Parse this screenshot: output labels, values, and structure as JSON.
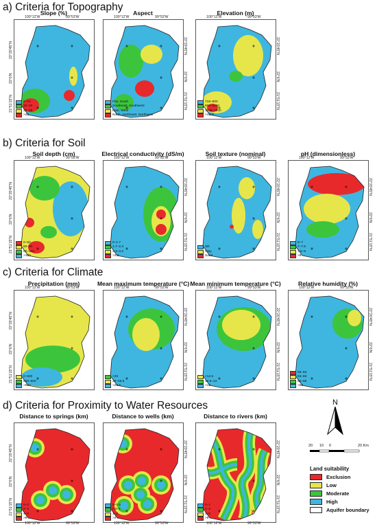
{
  "sections": [
    {
      "id": "topo",
      "title": "a) Criteria for Topography"
    },
    {
      "id": "soil",
      "title": "b) Criteria for Soil"
    },
    {
      "id": "climate",
      "title": "c) Criteria for Climate"
    },
    {
      "id": "water",
      "title": "d) Criteria for Proximity to Water Resources"
    }
  ],
  "coords": {
    "lon_left": "100°12'W",
    "lon_right": "99°53'W",
    "lat_top": "22°20'45\"N",
    "lat_mid": "22°6'N",
    "lat_bot": "21°51'15\"N"
  },
  "colors": {
    "exclusion": "#e8292b",
    "low": "#e6e64a",
    "moderate": "#3cc53c",
    "high": "#3fb6e0"
  },
  "panels": [
    {
      "title": "Slope (%)",
      "legend": [
        {
          "label": "0–10",
          "color": "#3fb6e0"
        },
        {
          "label": "10–20",
          "color": "#3cc53c"
        },
        {
          "label": "20–25",
          "color": "#e6e64a"
        },
        {
          "label": ">25",
          "color": "#e8292b"
        }
      ],
      "base": "#3fb6e0",
      "blobs": [
        {
          "c": "#3cc53c",
          "cx": 30,
          "cy": 118,
          "rx": 22,
          "ry": 18
        },
        {
          "c": "#e8292b",
          "cx": 24,
          "cy": 124,
          "rx": 12,
          "ry": 10
        },
        {
          "c": "#e6e64a",
          "cx": 86,
          "cy": 82,
          "rx": 6,
          "ry": 14
        },
        {
          "c": "#e8292b",
          "cx": 80,
          "cy": 110,
          "rx": 8,
          "ry": 8
        }
      ]
    },
    {
      "title": "Aspect",
      "legend": [
        {
          "label": "Flat, South",
          "color": "#3fb6e0"
        },
        {
          "label": "Southeast, Southwest",
          "color": "#3cc53c"
        },
        {
          "label": "East, West",
          "color": "#e6e64a"
        },
        {
          "label": "North, Northeast, Northwest",
          "color": "#e8292b"
        }
      ],
      "base": "#3fb6e0",
      "blobs": [
        {
          "c": "#3cc53c",
          "cx": 40,
          "cy": 60,
          "rx": 18,
          "ry": 24
        },
        {
          "c": "#e6e64a",
          "cx": 70,
          "cy": 50,
          "rx": 16,
          "ry": 14
        },
        {
          "c": "#e8292b",
          "cx": 60,
          "cy": 100,
          "rx": 14,
          "ry": 12
        },
        {
          "c": "#3cc53c",
          "cx": 30,
          "cy": 120,
          "rx": 14,
          "ry": 12
        }
      ]
    },
    {
      "title": "Elevation (m)",
      "legend": [
        {
          "label": "716–900",
          "color": "#3fb6e0"
        },
        {
          "label": "900–1100",
          "color": "#3cc53c"
        },
        {
          "label": "1100–1500",
          "color": "#e6e64a"
        },
        {
          "label": ">1500",
          "color": "#e8292b"
        }
      ],
      "base": "#3fb6e0",
      "blobs": [
        {
          "c": "#e6e64a",
          "cx": 76,
          "cy": 52,
          "rx": 22,
          "ry": 30
        },
        {
          "c": "#e6e64a",
          "cx": 30,
          "cy": 120,
          "rx": 22,
          "ry": 16
        },
        {
          "c": "#3cc53c",
          "cx": 58,
          "cy": 82,
          "rx": 10,
          "ry": 8
        },
        {
          "c": "#e8292b",
          "cx": 24,
          "cy": 128,
          "rx": 8,
          "ry": 6
        }
      ]
    },
    {
      "title": "Soil depth (cm)",
      "legend": [
        {
          "label": "0–50",
          "color": "#e8292b"
        },
        {
          "label": "50–80",
          "color": "#e6e64a"
        },
        {
          "label": "80–100",
          "color": "#3cc53c"
        },
        {
          "label": ">100",
          "color": "#3fb6e0"
        }
      ],
      "base": "#e6e64a",
      "blobs": [
        {
          "c": "#3fb6e0",
          "cx": 82,
          "cy": 70,
          "rx": 26,
          "ry": 40
        },
        {
          "c": "#3cc53c",
          "cx": 44,
          "cy": 40,
          "rx": 22,
          "ry": 18
        },
        {
          "c": "#e8292b",
          "cx": 22,
          "cy": 90,
          "rx": 7,
          "ry": 7
        },
        {
          "c": "#e8292b",
          "cx": 32,
          "cy": 126,
          "rx": 12,
          "ry": 9
        },
        {
          "c": "#3cc53c",
          "cx": 50,
          "cy": 104,
          "rx": 12,
          "ry": 9
        }
      ]
    },
    {
      "title": "Electrical conductivity (dS/m)",
      "legend": [
        {
          "label": "0–1.7",
          "color": "#3fb6e0"
        },
        {
          "label": "1.7–2.3",
          "color": "#3cc53c"
        },
        {
          "label": "2.3–3.3",
          "color": "#e6e64a"
        },
        {
          "label": ">3.3",
          "color": "#e8292b"
        }
      ],
      "base": "#3fb6e0",
      "blobs": [
        {
          "c": "#3cc53c",
          "cx": 84,
          "cy": 78,
          "rx": 26,
          "ry": 40
        },
        {
          "c": "#e6e64a",
          "cx": 84,
          "cy": 88,
          "rx": 14,
          "ry": 22
        },
        {
          "c": "#e8292b",
          "cx": 84,
          "cy": 78,
          "rx": 7,
          "ry": 7
        },
        {
          "c": "#e8292b",
          "cx": 84,
          "cy": 100,
          "rx": 8,
          "ry": 8
        }
      ]
    },
    {
      "title": "Soil texture (nominal)",
      "legend": [
        {
          "label": "Silt",
          "color": "#3fb6e0"
        },
        {
          "label": "Clay",
          "color": "#e6e64a"
        },
        {
          "label": "Sand",
          "color": "#e8292b"
        }
      ],
      "base": "#3fb6e0",
      "blobs": [
        {
          "c": "#e6e64a",
          "cx": 74,
          "cy": 40,
          "rx": 12,
          "ry": 16
        },
        {
          "c": "#e6e64a",
          "cx": 62,
          "cy": 80,
          "rx": 10,
          "ry": 26
        },
        {
          "c": "#e6e64a",
          "cx": 90,
          "cy": 100,
          "rx": 8,
          "ry": 14
        },
        {
          "c": "#e8292b",
          "cx": 52,
          "cy": 96,
          "rx": 3,
          "ry": 3
        }
      ]
    },
    {
      "title": "pH (dimensionless)",
      "legend": [
        {
          "label": "6–7",
          "color": "#3fb6e0"
        },
        {
          "label": "7–7.5",
          "color": "#3cc53c"
        },
        {
          "label": "7.5–8",
          "color": "#e6e64a"
        },
        {
          "label": ">8",
          "color": "#e8292b"
        }
      ],
      "base": "#3fb6e0",
      "blobs": [
        {
          "c": "#e8292b",
          "cx": 70,
          "cy": 34,
          "rx": 42,
          "ry": 16
        },
        {
          "c": "#e6e64a",
          "cx": 56,
          "cy": 70,
          "rx": 34,
          "ry": 22
        },
        {
          "c": "#3cc53c",
          "cx": 50,
          "cy": 100,
          "rx": 24,
          "ry": 12
        }
      ]
    },
    {
      "title": "Precipitation (mm)",
      "legend": [
        {
          "label": "0–500",
          "color": "#e6e64a"
        },
        {
          "label": "500–600",
          "color": "#3cc53c"
        },
        {
          "label": ">600",
          "color": "#3fb6e0"
        }
      ],
      "base": "#e6e64a",
      "blobs": [
        {
          "c": "#3cc53c",
          "cx": 56,
          "cy": 100,
          "rx": 40,
          "ry": 20
        },
        {
          "c": "#3fb6e0",
          "cx": 40,
          "cy": 126,
          "rx": 30,
          "ry": 14
        }
      ]
    },
    {
      "title": "Mean maximum temperature (°C)",
      "legend": [
        {
          "label": "<29",
          "color": "#3cc53c"
        },
        {
          "label": "29–29.5",
          "color": "#e6e64a"
        },
        {
          "label": ">29.5",
          "color": "#3fb6e0"
        }
      ],
      "base": "#3fb6e0",
      "blobs": [
        {
          "c": "#3cc53c",
          "cx": 70,
          "cy": 56,
          "rx": 34,
          "ry": 30
        },
        {
          "c": "#e6e64a",
          "cx": 62,
          "cy": 64,
          "rx": 20,
          "ry": 24
        }
      ]
    },
    {
      "title": "Mean minimum temperature (°C)",
      "legend": [
        {
          "label": "<12.5",
          "color": "#e6e64a"
        },
        {
          "label": "12.5–13",
          "color": "#3cc53c"
        },
        {
          "label": ">13",
          "color": "#3fb6e0"
        }
      ],
      "base": "#3fb6e0",
      "blobs": [
        {
          "c": "#3cc53c",
          "cx": 70,
          "cy": 56,
          "rx": 40,
          "ry": 32
        },
        {
          "c": "#e6e64a",
          "cx": 66,
          "cy": 50,
          "rx": 28,
          "ry": 22
        }
      ]
    },
    {
      "title": "Relative humidity (%)",
      "legend": [
        {
          "label": "59–63",
          "color": "#e8292b"
        },
        {
          "label": "63–65",
          "color": "#e6e64a"
        },
        {
          "label": "65–68",
          "color": "#3cc53c"
        },
        {
          "label": ">68",
          "color": "#3fb6e0"
        }
      ],
      "base": "#3fb6e0",
      "blobs": [
        {
          "c": "#3cc53c",
          "cx": 86,
          "cy": 48,
          "rx": 22,
          "ry": 22
        },
        {
          "c": "#e6e64a",
          "cx": 96,
          "cy": 40,
          "rx": 10,
          "ry": 12
        }
      ]
    },
    {
      "title": "Distance to springs (km)",
      "legend": [
        {
          "label": "0–2",
          "color": "#3fb6e0"
        },
        {
          "label": "2–4",
          "color": "#3cc53c"
        },
        {
          "label": "4–6",
          "color": "#e6e64a"
        },
        {
          "label": ">6",
          "color": "#e8292b"
        }
      ],
      "base": "#e8292b",
      "rings": [
        [
          30,
          36
        ],
        [
          56,
          98
        ],
        [
          76,
          104
        ],
        [
          38,
          112
        ]
      ]
    },
    {
      "title": "Distance to wells (km)",
      "legend": [
        {
          "label": "0–0.5",
          "color": "#3fb6e0"
        },
        {
          "label": "0.5–1",
          "color": "#3cc53c"
        },
        {
          "label": "1–2",
          "color": "#e6e64a"
        },
        {
          "label": ">2",
          "color": "#e8292b"
        }
      ],
      "base": "#e8292b",
      "rings": [
        [
          28,
          30
        ],
        [
          36,
          90
        ],
        [
          56,
          84
        ],
        [
          54,
          104
        ],
        [
          84,
          90
        ],
        [
          64,
          118
        ],
        [
          30,
          120
        ]
      ]
    },
    {
      "title": "Distance to rivers (km)",
      "legend": [
        {
          "label": "0–1",
          "color": "#3fb6e0"
        },
        {
          "label": "1–3",
          "color": "#3cc53c"
        },
        {
          "label": "3–5",
          "color": "#e6e64a"
        },
        {
          "label": ">5",
          "color": "#e8292b"
        }
      ],
      "base": "#e8292b",
      "rivers": true
    }
  ],
  "scale": {
    "labels": [
      "20",
      "10",
      "0",
      "20 Km"
    ]
  },
  "north_label": "N",
  "land_suitability": {
    "title": "Land suitability",
    "items": [
      {
        "label": "Exclusion",
        "color": "#e8292b"
      },
      {
        "label": "Low",
        "color": "#e6e64a"
      },
      {
        "label": "Moderate",
        "color": "#3cc53c"
      },
      {
        "label": "High",
        "color": "#3fb6e0"
      }
    ],
    "boundary_label": "Aquifer boundary"
  }
}
